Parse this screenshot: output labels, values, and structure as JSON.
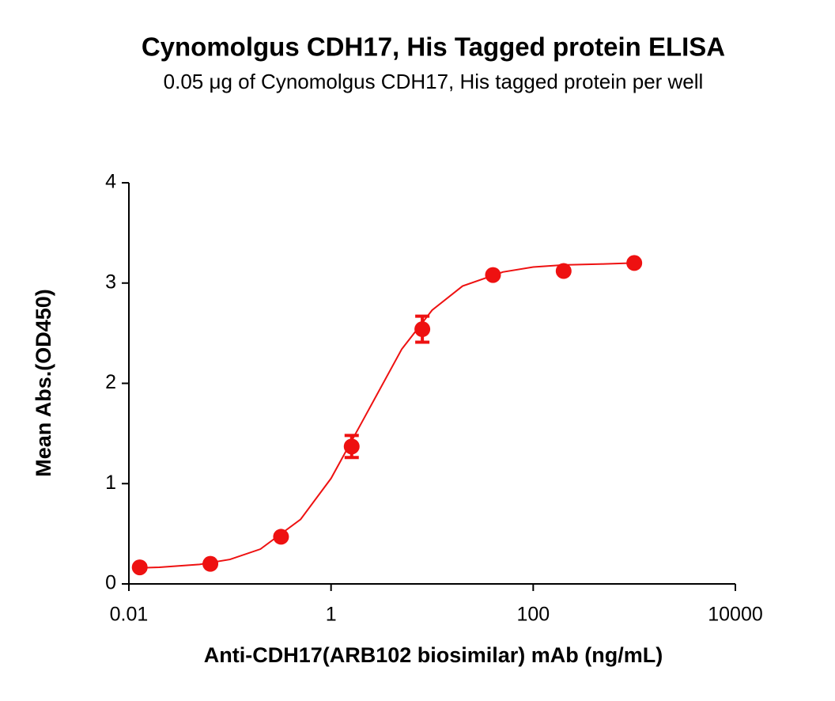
{
  "chart_data": {
    "type": "scatter",
    "title": "Cynomolgus CDH17, His Tagged protein ELISA",
    "subtitle": "0.05 μg of Cynomolgus CDH17, His tagged protein per well",
    "x_label": "Anti-CDH17(ARB102 biosimilar) mAb (ng/mL)",
    "y_label": "Mean Abs.(OD450)",
    "x_scale": "log",
    "xlim": [
      0.01,
      10000
    ],
    "xticks": [
      0.01,
      1,
      100,
      10000
    ],
    "ylim": [
      0,
      4
    ],
    "yticks": [
      0,
      1,
      2,
      3,
      4
    ],
    "color": "#ee1111",
    "x": [
      0.0128,
      0.064,
      0.32,
      1.6,
      8,
      40,
      200,
      1000
    ],
    "values": [
      0.165,
      0.2,
      0.47,
      1.37,
      2.54,
      3.08,
      3.12,
      3.2
    ],
    "errors": [
      0.02,
      0.02,
      0.02,
      0.11,
      0.13,
      0.02,
      0.02,
      0.02
    ],
    "fit": {
      "x": [
        0.0128,
        0.02,
        0.05,
        0.1,
        0.2,
        0.5,
        1,
        2,
        5,
        10,
        20,
        50,
        100,
        200,
        500,
        1000
      ],
      "values": [
        0.16,
        0.166,
        0.194,
        0.244,
        0.347,
        0.644,
        1.052,
        1.605,
        2.34,
        2.73,
        2.97,
        3.11,
        3.16,
        3.18,
        3.19,
        3.2
      ]
    }
  }
}
